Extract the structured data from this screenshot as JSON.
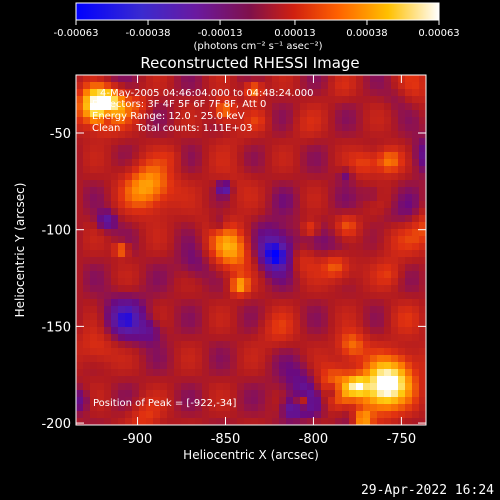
{
  "chart_data": {
    "type": "heatmap",
    "title": "Reconstructed RHESSI Image",
    "xlabel": "Heliocentric X (arcsec)",
    "ylabel": "Heliocentric Y (arcsec)",
    "xlim": [
      -935,
      -736
    ],
    "ylim": [
      -201,
      -20
    ],
    "x_ticks": [
      -900,
      -850,
      -800,
      -750
    ],
    "x_tick_labels": [
      "-900",
      "-850",
      "-800",
      "-750"
    ],
    "y_ticks": [
      -50,
      -100,
      -150,
      -200
    ],
    "y_tick_labels": [
      "-50",
      "-100",
      "-150",
      "-200"
    ],
    "colorbar": {
      "range": [
        -0.00063,
        0.00063
      ],
      "ticks": [
        -0.00063,
        -0.00038,
        -0.00013,
        0.00013,
        0.00038,
        0.00063
      ],
      "tick_labels": [
        "-0.00063",
        "-0.00038",
        "-0.00013",
        "0.00013",
        "0.00038",
        "0.00063"
      ],
      "unit_label": "(photons cm⁻² s⁻¹ asec⁻²)",
      "colors": [
        "#0000ff",
        "#5a1ca8",
        "#6b0a80",
        "#b01a20",
        "#e03010",
        "#ff8000",
        "#ffd010",
        "#ffffff"
      ]
    },
    "annotations": {
      "time_range": "4-May-2005 04:46:04.000 to 04:48:24.000",
      "detectors": "Detectors: 3F 4F 5F 6F 7F 8F, Att 0",
      "energy": "Energy Range: 12.0 - 25.0 keV",
      "clean": "Clean     Total counts: 1.11E+03",
      "peak": "Position of Peak = [-922,-34]"
    },
    "peak": [
      -922,
      -34
    ]
  },
  "footer": {
    "timestamp": "29-Apr-2022 16:24"
  }
}
